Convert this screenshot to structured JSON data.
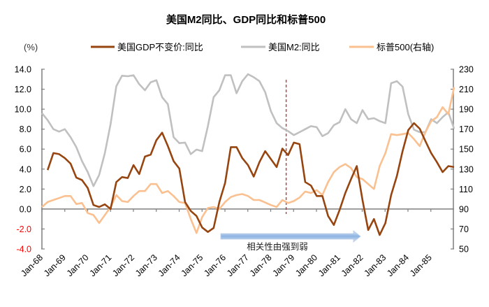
{
  "chart_data": {
    "type": "line",
    "title": "美国M2同比、GDP同比和标普500",
    "left_axis_unit": "(%)",
    "left_axis": {
      "ylim": [
        -4,
        14
      ],
      "ticks": [
        "14.0",
        "12.0",
        "10.0",
        "8.0",
        "6.0",
        "4.0",
        "2.0",
        "0.0",
        "-2.0",
        "-4.0"
      ],
      "negative_color": "#ff0000"
    },
    "right_axis": {
      "ylim": [
        50,
        230
      ],
      "ticks": [
        "230",
        "210",
        "190",
        "170",
        "150",
        "130",
        "110",
        "90",
        "70",
        "50"
      ]
    },
    "x_ticks": [
      "Jan-68",
      "Jan-69",
      "Jan-70",
      "Jan-71",
      "Jan-72",
      "Jan-73",
      "Jan-74",
      "Jan-75",
      "Jan-76",
      "Jan-77",
      "Jan-78",
      "Jan-79",
      "Jan-80",
      "Jan-81",
      "Jan-82",
      "Jan-83",
      "Jan-84",
      "Jan-85"
    ],
    "x_range": [
      "1968-01",
      "1986-01"
    ],
    "grid": false,
    "legend": "top",
    "dates": [
      "1968-01",
      "1968-04",
      "1968-07",
      "1968-10",
      "1969-01",
      "1969-04",
      "1969-07",
      "1969-10",
      "1970-01",
      "1970-04",
      "1970-07",
      "1970-10",
      "1971-01",
      "1971-04",
      "1971-07",
      "1971-10",
      "1972-01",
      "1972-04",
      "1972-07",
      "1972-10",
      "1973-01",
      "1973-04",
      "1973-07",
      "1973-10",
      "1974-01",
      "1974-04",
      "1974-07",
      "1974-10",
      "1975-01",
      "1975-04",
      "1975-07",
      "1975-10",
      "1976-01",
      "1976-04",
      "1976-07",
      "1976-10",
      "1977-01",
      "1977-04",
      "1977-07",
      "1977-10",
      "1978-01",
      "1978-04",
      "1978-07",
      "1978-10",
      "1979-01",
      "1979-04",
      "1979-07",
      "1979-10",
      "1980-01",
      "1980-04",
      "1980-07",
      "1980-10",
      "1981-01",
      "1981-04",
      "1981-07",
      "1981-10",
      "1982-01",
      "1982-04",
      "1982-07",
      "1982-10",
      "1983-01",
      "1983-04",
      "1983-07",
      "1983-10",
      "1984-01",
      "1984-04",
      "1984-07",
      "1984-10",
      "1985-01",
      "1985-04",
      "1985-07",
      "1985-10",
      "1986-01"
    ],
    "series": [
      {
        "name": "美国GDP不变价:同比",
        "axis": "left",
        "color": "#974510",
        "values": [
          null,
          3.9,
          5.6,
          5.5,
          5.1,
          4.55,
          3.15,
          2.9,
          2.1,
          0.4,
          0.2,
          0.47,
          0.0,
          2.7,
          3.2,
          3.1,
          4.4,
          3.5,
          5.25,
          5.45,
          6.9,
          7.65,
          6.3,
          4.8,
          4.05,
          0.7,
          -0.2,
          -0.7,
          -1.85,
          -2.3,
          -1.9,
          0.7,
          2.6,
          6.2,
          6.2,
          5.1,
          4.4,
          3.25,
          4.7,
          5.8,
          5.0,
          4.2,
          6.05,
          5.4,
          6.65,
          6.5,
          2.7,
          2.35,
          1.3,
          1.3,
          -0.7,
          -1.6,
          -0.1,
          1.6,
          3.0,
          4.3,
          0.9,
          -2.1,
          -1.0,
          -2.6,
          -1.4,
          1.4,
          3.3,
          5.8,
          7.9,
          8.6,
          8.05,
          6.8,
          5.6,
          4.7,
          3.7,
          4.3,
          4.2
        ]
      },
      {
        "name": "美国M2:同比",
        "axis": "left",
        "color": "#c0c0c0",
        "values": [
          9.6,
          8.9,
          8.0,
          7.75,
          8.0,
          7.2,
          6.2,
          4.8,
          3.7,
          2.3,
          3.4,
          5.6,
          8.5,
          12.3,
          13.35,
          13.3,
          13.4,
          12.5,
          11.9,
          12.7,
          12.9,
          11.2,
          10.5,
          7.2,
          6.6,
          6.65,
          5.5,
          5.95,
          5.8,
          8.3,
          11.2,
          11.9,
          13.4,
          13.4,
          11.6,
          12.8,
          13.5,
          13.2,
          12.8,
          11.7,
          9.8,
          8.6,
          8.1,
          7.8,
          7.4,
          7.7,
          8.0,
          8.3,
          8.2,
          7.3,
          7.6,
          8.4,
          8.7,
          10.0,
          9.0,
          8.6,
          9.9,
          9.0,
          9.1,
          8.8,
          8.6,
          12.6,
          12.8,
          12.25,
          9.5,
          7.95,
          7.7,
          7.7,
          9.0,
          8.6,
          9.2,
          9.7,
          8.05
        ]
      },
      {
        "name": "标普500(右轴)",
        "axis": "right",
        "color": "#fac090",
        "values": [
          92,
          97,
          99,
          101,
          103,
          103,
          95,
          96,
          86,
          84,
          76,
          84,
          92,
          104,
          98,
          97,
          103,
          108,
          108,
          115,
          115,
          106,
          108,
          103,
          97,
          96,
          80,
          66,
          82,
          91,
          92,
          90,
          97,
          102,
          104,
          105,
          103,
          99,
          99,
          96.5,
          94,
          92,
          99,
          96,
          98,
          101.5,
          107.5,
          106,
          109,
          104,
          117,
          127,
          132,
          135,
          131,
          122,
          120,
          115,
          110,
          133,
          146,
          165,
          164,
          165,
          166,
          160,
          153,
          167,
          178,
          182,
          192,
          185,
          212
        ]
      }
    ],
    "annotations": {
      "divider_date": "1978-09",
      "divider_color": "#ff0000",
      "arrow_label": "相关性由强到弱",
      "arrow_color": "#8eb4e3"
    }
  }
}
